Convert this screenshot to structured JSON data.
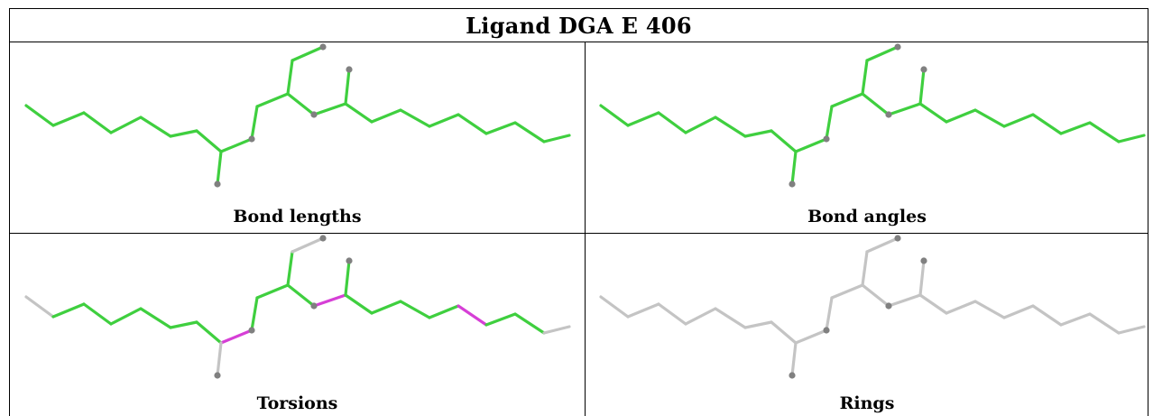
{
  "table": {
    "title": "Ligand DGA E 406",
    "panels": [
      {
        "caption": "Bond lengths",
        "scheme": "lengths"
      },
      {
        "caption": "Bond angles",
        "scheme": "angles"
      },
      {
        "caption": "Torsions",
        "scheme": "torsions"
      },
      {
        "caption": "Rings",
        "scheme": "rings"
      }
    ]
  },
  "colors": {
    "ok_bond": "#3fcf3f",
    "outlier_bond": "#d63fd6",
    "unassessed_bond": "#c4c4c4",
    "atom": "#808080",
    "border": "#000000"
  }
}
